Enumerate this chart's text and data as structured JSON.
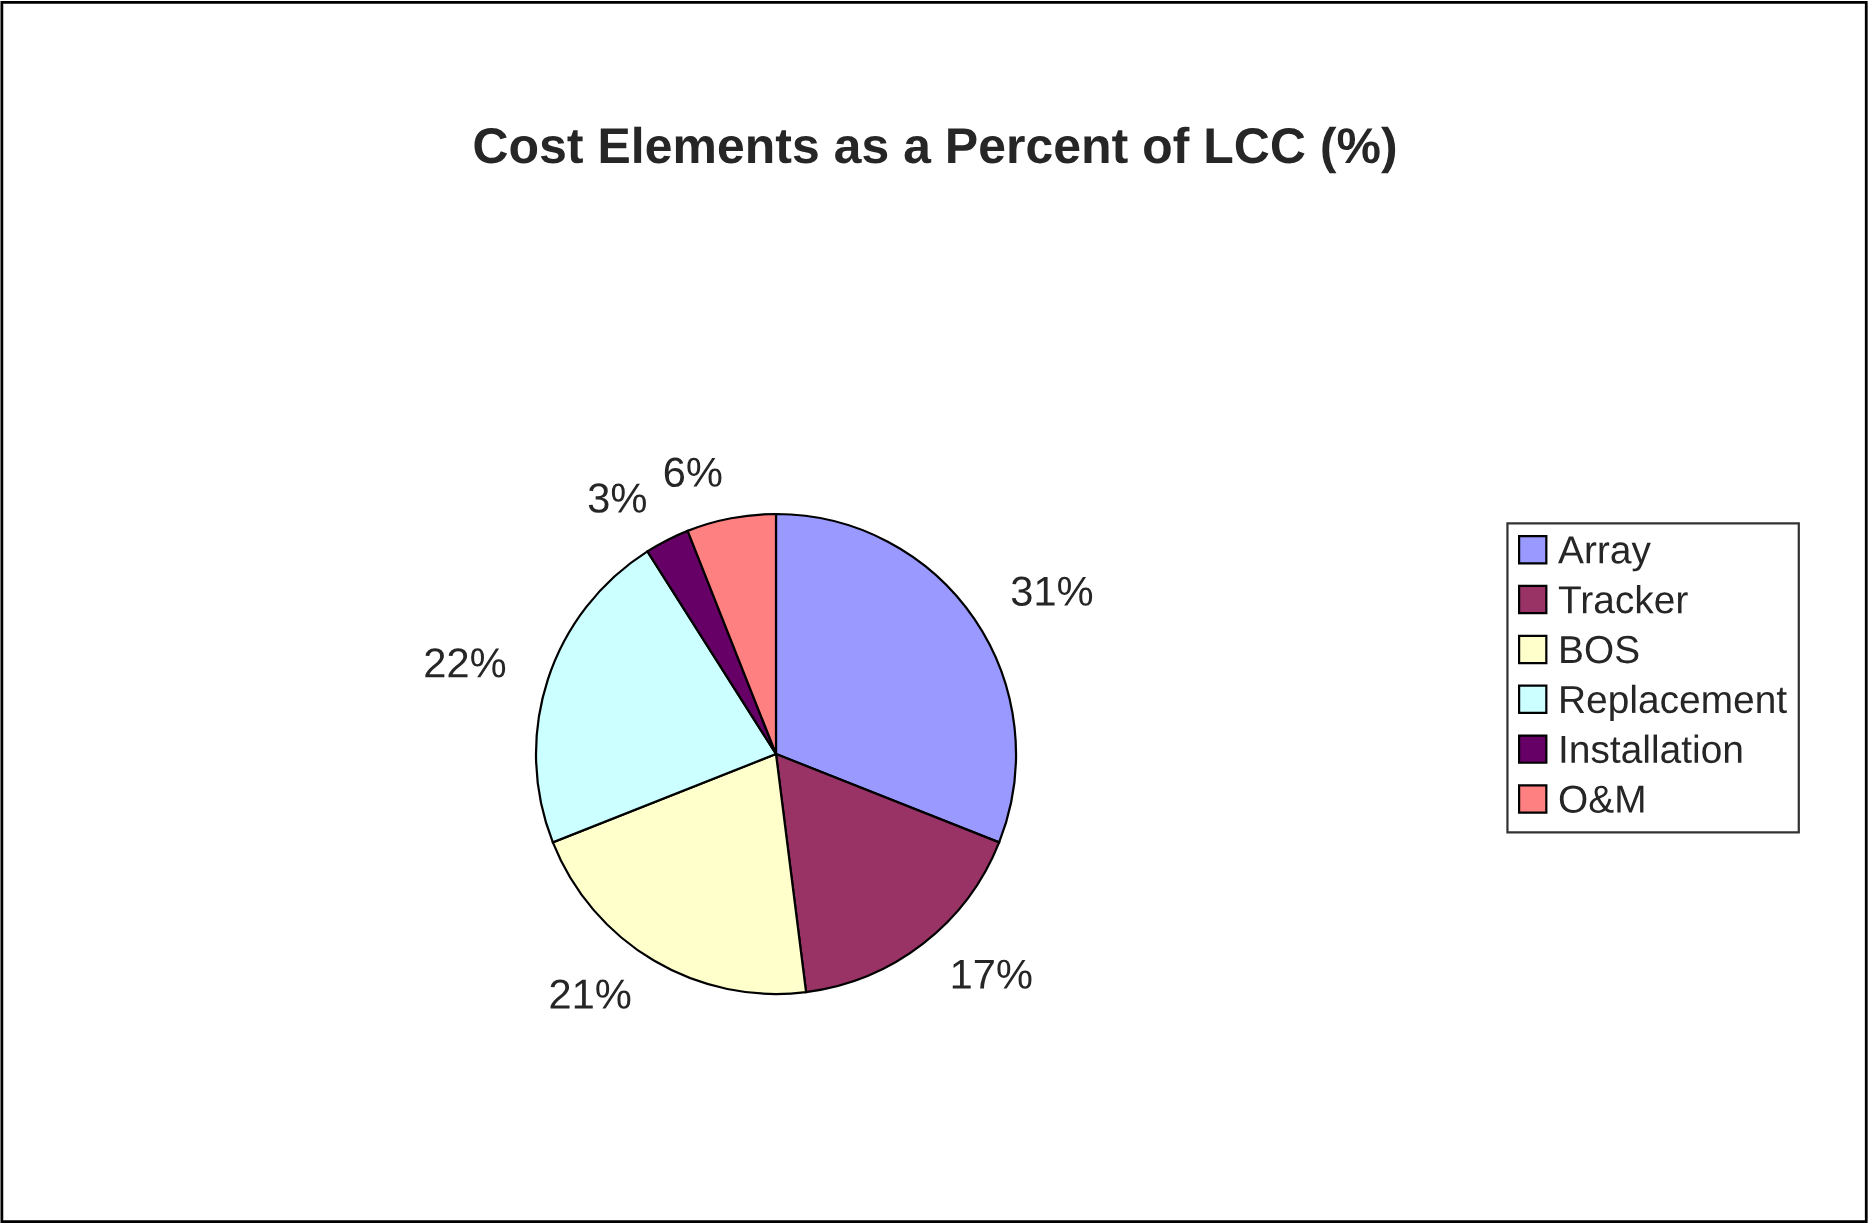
{
  "chart_data": {
    "type": "pie",
    "title": "Cost Elements as a Percent of LCC (%)",
    "categories": [
      "Array",
      "Tracker",
      "BOS",
      "Replacement",
      "Installation",
      "O&M"
    ],
    "values": [
      31,
      17,
      21,
      22,
      3,
      6
    ],
    "colors": [
      "#9999ff",
      "#993366",
      "#ffffcc",
      "#ccffff",
      "#660066",
      "#ff8080"
    ],
    "value_labels": [
      "31%",
      "17%",
      "21%",
      "22%",
      "3%",
      "6%"
    ],
    "legend": "right"
  }
}
